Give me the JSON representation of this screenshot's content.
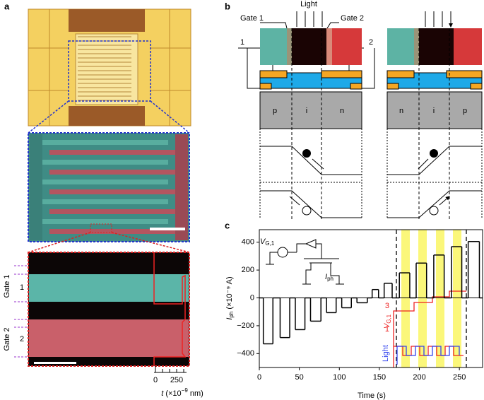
{
  "panels": {
    "a": {
      "label": "a",
      "gate1": "Gate 1",
      "row1": "1",
      "gate2": "Gate 2",
      "row2": "2",
      "tick0": "0",
      "tick250": "250",
      "axis_label": {
        "var": "t",
        "pre": " (×10",
        "exp": "−9",
        "unit": " nm)"
      }
    },
    "b": {
      "label": "b",
      "gate1": "Gate 1",
      "light": "Light",
      "gate2": "Gate 2",
      "left": "1",
      "right": "2",
      "left_regions": [
        "p",
        "i",
        "n"
      ],
      "right_regions": [
        "n",
        "i",
        "p"
      ]
    },
    "c": {
      "label": "c",
      "circuit_v": {
        "main": "V",
        "sub": "G,1"
      },
      "circuit_i": {
        "main": "I",
        "sub": "ph"
      },
      "inset_v": {
        "main": "V",
        "sub": "G,1"
      },
      "inset_3": "3",
      "inset_1": "1",
      "inset_light": "Light"
    }
  },
  "chart_data": {
    "type": "line",
    "xlabel": "Time (s)",
    "ylabel": {
      "main": "I",
      "sub": "ph",
      "rest": " (×10⁻⁹ A)"
    },
    "x": [
      0,
      5,
      17,
      26,
      38,
      45,
      57,
      64,
      77,
      84,
      96,
      103,
      115,
      122,
      135,
      141,
      149,
      156,
      166,
      175,
      188,
      196,
      209,
      218,
      231,
      240,
      253,
      261,
      275
    ],
    "series": [
      {
        "color": "#000000",
        "values": [
          0,
          -330,
          0,
          -285,
          0,
          -228,
          0,
          -167,
          0,
          -106,
          0,
          -71,
          0,
          -35,
          0,
          60,
          0,
          105,
          0,
          180,
          0,
          250,
          0,
          308,
          0,
          368,
          0,
          405,
          0
        ]
      }
    ],
    "xlim": [
      0,
      279
    ],
    "xticks": [
      0,
      50,
      100,
      150,
      200,
      250
    ],
    "ylim": [
      -500,
      490
    ],
    "yticks": [
      {
        "value": -400,
        "label": "−400"
      },
      {
        "value": -200,
        "label": "−200"
      },
      0,
      200,
      400
    ]
  }
}
